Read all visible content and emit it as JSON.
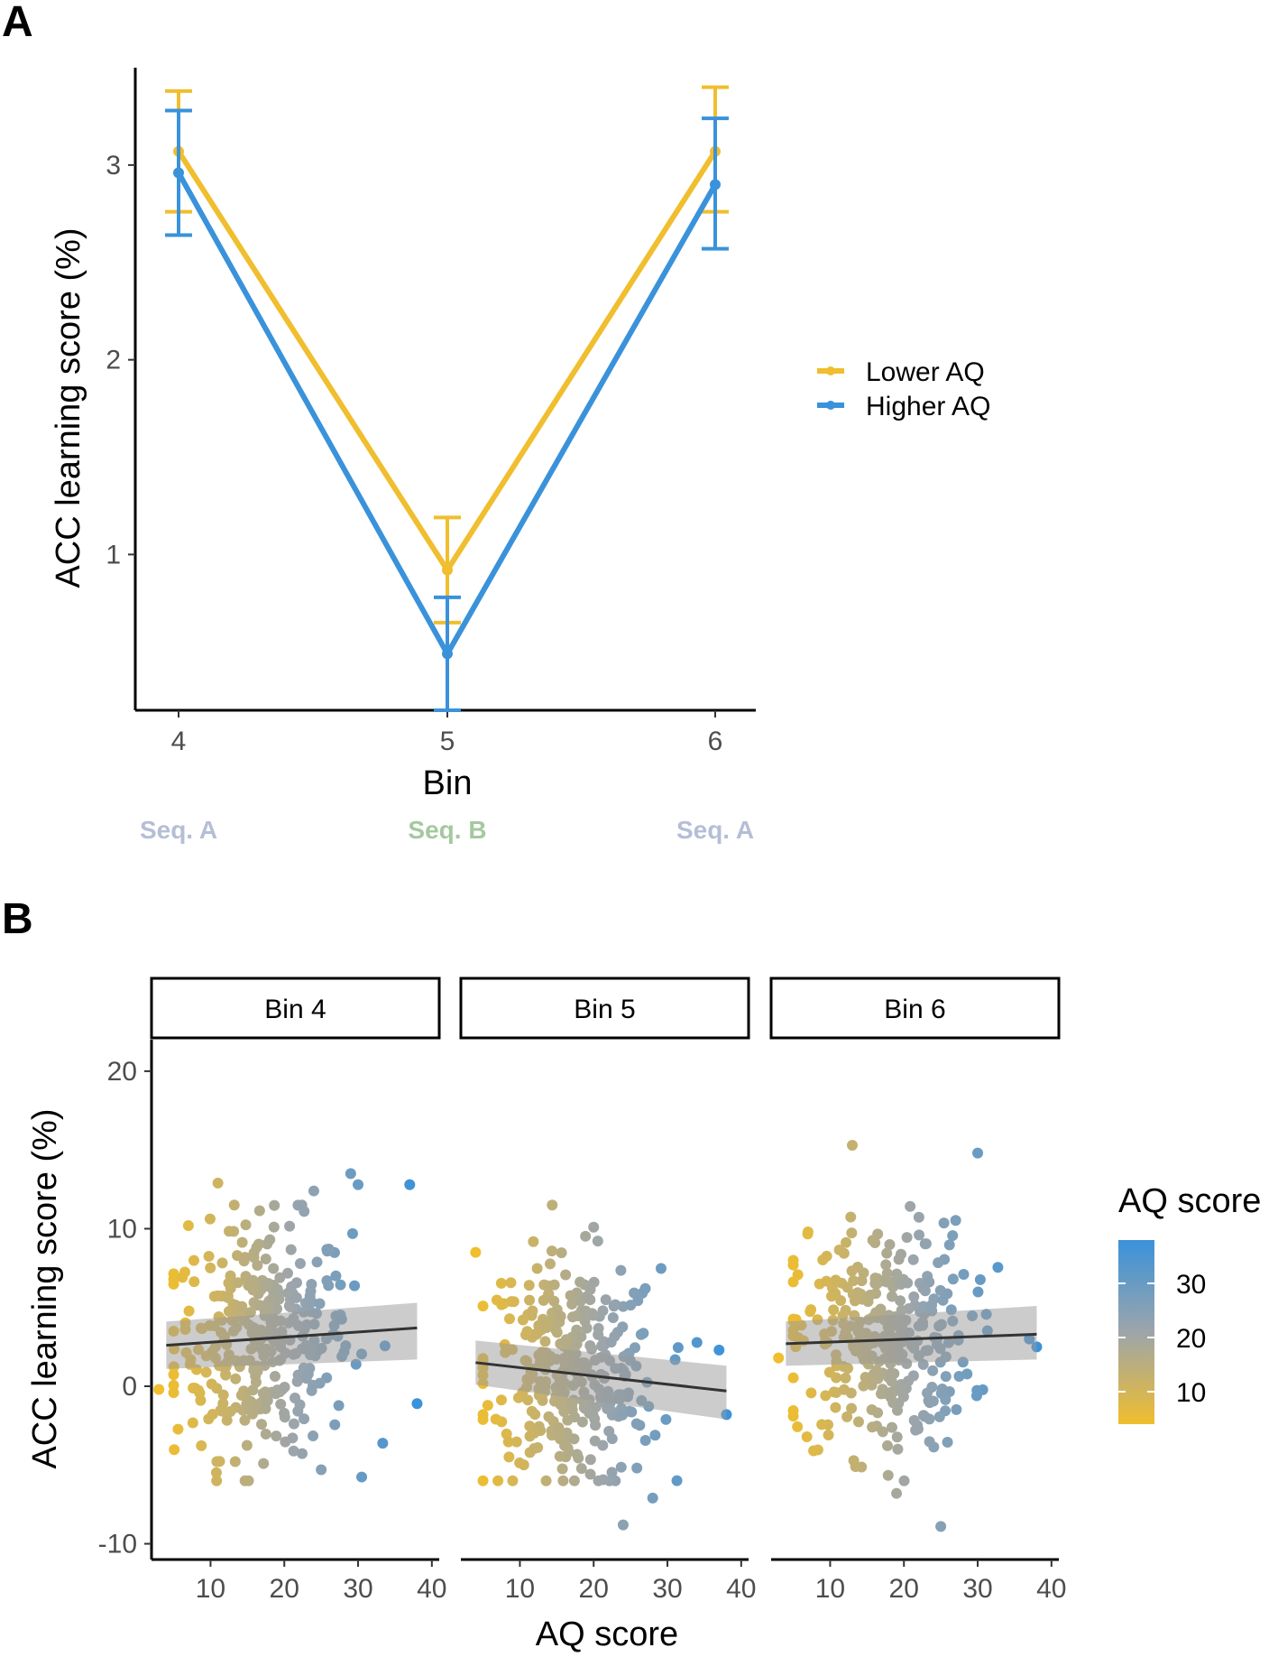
{
  "panels": {
    "a_label": "A",
    "b_label": "B"
  },
  "chart_data": [
    {
      "type": "line",
      "panel": "A",
      "xlabel": "Bin",
      "ylabel": "ACC learning score (%)",
      "categories": [
        "4",
        "5",
        "6"
      ],
      "ylim": [
        0.2,
        3.5
      ],
      "y_ticks": [
        "1",
        "2",
        "3"
      ],
      "grid": false,
      "legend_position": "right",
      "series": [
        {
          "name": "Lower AQ",
          "color": "#F0BE2E",
          "values": [
            3.07,
            0.92,
            3.07
          ],
          "error_low": [
            2.76,
            0.65,
            2.76
          ],
          "error_high": [
            3.38,
            1.19,
            3.4
          ]
        },
        {
          "name": "Higher AQ",
          "color": "#3A92DA",
          "values": [
            2.96,
            0.49,
            2.9
          ],
          "error_low": [
            2.64,
            0.2,
            2.57
          ],
          "error_high": [
            3.28,
            0.78,
            3.24
          ]
        }
      ],
      "annotations": [
        {
          "text": "Seq. A",
          "bin": "4",
          "color": "#B4BED6"
        },
        {
          "text": "Seq. B",
          "bin": "5",
          "color": "#A5C8A0"
        },
        {
          "text": "Seq. A",
          "bin": "6",
          "color": "#B4BED6"
        }
      ]
    },
    {
      "type": "scatter",
      "panel": "B",
      "xlabel": "AQ score",
      "ylabel": "ACC learning score (%)",
      "facets": [
        "Bin 4",
        "Bin 5",
        "Bin 6"
      ],
      "xlim": [
        2,
        41
      ],
      "ylim": [
        -11,
        22
      ],
      "x_ticks": [
        "10",
        "20",
        "30",
        "40"
      ],
      "y_ticks": [
        "-10",
        "0",
        "10",
        "20"
      ],
      "grid": false,
      "color_scale": {
        "title": "AQ score",
        "low_color": "#F0BE2E",
        "mid_color": "#9DA5AA",
        "high_color": "#3A92DA",
        "min": 4,
        "max": 38,
        "ticks": [
          "10",
          "20",
          "30"
        ]
      },
      "regression": [
        {
          "facet": "Bin 4",
          "x": [
            4,
            38
          ],
          "y": [
            2.6,
            3.7
          ],
          "ci_low": [
            1.1,
            1.7
          ],
          "ci_high": [
            4.1,
            5.3
          ]
        },
        {
          "facet": "Bin 5",
          "x": [
            4,
            38
          ],
          "y": [
            1.5,
            -0.3
          ],
          "ci_low": [
            0.1,
            -2.1
          ],
          "ci_high": [
            2.9,
            1.3
          ]
        },
        {
          "facet": "Bin 6",
          "x": [
            4,
            38
          ],
          "y": [
            2.7,
            3.3
          ],
          "ci_low": [
            1.3,
            1.7
          ],
          "ci_high": [
            4.1,
            5.1
          ]
        }
      ],
      "outliers": [
        {
          "facet": "Bin 4",
          "x": [
            3,
            37,
            38,
            29,
            30,
            24,
            25,
            11,
            7
          ],
          "y": [
            -0.2,
            12.8,
            -1.1,
            13.5,
            12.8,
            12.4,
            -5.3,
            12.9,
            10.2
          ]
        },
        {
          "facet": "Bin 5",
          "x": [
            4,
            38,
            37,
            20,
            27,
            24,
            28
          ],
          "y": [
            8.5,
            -1.8,
            2.3,
            10.1,
            6.2,
            -8.8,
            -7.1
          ]
        },
        {
          "facet": "Bin 6",
          "x": [
            3,
            38,
            37,
            13,
            30,
            25,
            19,
            7
          ],
          "y": [
            1.8,
            2.5,
            3.0,
            15.3,
            14.8,
            -8.9,
            -6.8,
            9.8
          ]
        }
      ]
    }
  ]
}
